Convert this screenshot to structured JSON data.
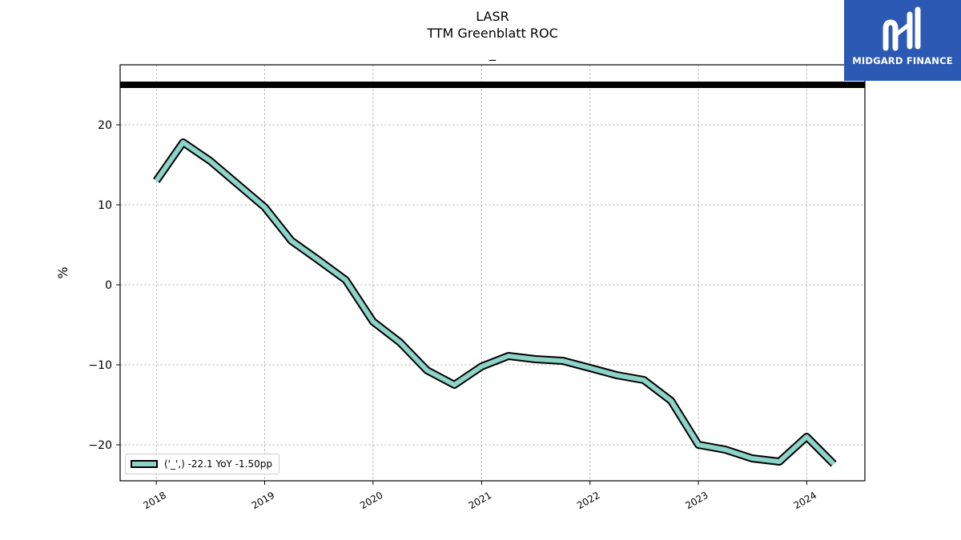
{
  "chart_data": {
    "type": "line",
    "title": "LASR",
    "subtitle": "TTM Greenblatt ROC",
    "subtitle2": "_",
    "ylabel": "%",
    "xlim": [
      "2017-09-01",
      "2024-07-15"
    ],
    "ylim": [
      -24.5,
      27.5
    ],
    "yticks": [
      20,
      10,
      0,
      -10,
      -20
    ],
    "ytick_labels": [
      "20",
      "10",
      "0",
      "−10",
      "−20"
    ],
    "xticks": [
      "2018-01-01",
      "2019-01-01",
      "2020-01-01",
      "2021-01-01",
      "2022-01-01",
      "2023-01-01",
      "2024-01-01"
    ],
    "xtick_labels": [
      "2018",
      "2019",
      "2020",
      "2021",
      "2022",
      "2023",
      "2024"
    ],
    "grid": true,
    "legend_placement": "lower-left",
    "reference_line": 25,
    "colors": {
      "series": "#8dd3c7",
      "edge": "#000000",
      "reference": "#000000",
      "grid": "#b0b0b0"
    },
    "series": [
      {
        "name": "('_',) -22.1 YoY -1.50pp",
        "x": [
          "2018-01-01",
          "2018-04-01",
          "2018-07-01",
          "2018-10-01",
          "2019-01-01",
          "2019-04-01",
          "2019-07-01",
          "2019-10-01",
          "2020-01-01",
          "2020-04-01",
          "2020-07-01",
          "2020-10-01",
          "2021-01-01",
          "2021-04-01",
          "2021-07-01",
          "2021-10-01",
          "2022-01-01",
          "2022-04-01",
          "2022-07-01",
          "2022-10-01",
          "2023-01-01",
          "2023-04-01",
          "2023-07-01",
          "2023-10-01",
          "2024-01-01",
          "2024-04-01"
        ],
        "values": [
          13.0,
          17.8,
          15.5,
          12.6,
          9.7,
          5.5,
          3.1,
          0.6,
          -4.6,
          -7.2,
          -10.7,
          -12.5,
          -10.2,
          -8.9,
          -9.3,
          -9.5,
          -10.4,
          -11.3,
          -11.9,
          -14.5,
          -20.0,
          -20.6,
          -21.7,
          -22.1,
          -19.0,
          -22.4
        ]
      }
    ]
  },
  "logo": {
    "text": "MIDGARD FINANCE",
    "color": "#2b59b3"
  }
}
